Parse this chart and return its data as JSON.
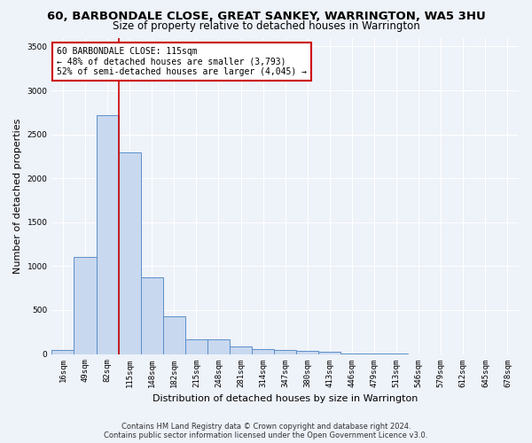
{
  "title": "60, BARBONDALE CLOSE, GREAT SANKEY, WARRINGTON, WA5 3HU",
  "subtitle": "Size of property relative to detached houses in Warrington",
  "xlabel": "Distribution of detached houses by size in Warrington",
  "ylabel": "Number of detached properties",
  "footer_line1": "Contains HM Land Registry data © Crown copyright and database right 2024.",
  "footer_line2": "Contains public sector information licensed under the Open Government Licence v3.0.",
  "categories": [
    "16sqm",
    "49sqm",
    "82sqm",
    "115sqm",
    "148sqm",
    "182sqm",
    "215sqm",
    "248sqm",
    "281sqm",
    "314sqm",
    "347sqm",
    "380sqm",
    "413sqm",
    "446sqm",
    "479sqm",
    "513sqm",
    "546sqm",
    "579sqm",
    "612sqm",
    "645sqm",
    "678sqm"
  ],
  "values": [
    50,
    1100,
    2720,
    2290,
    870,
    425,
    170,
    165,
    90,
    60,
    50,
    35,
    25,
    10,
    5,
    5,
    0,
    0,
    0,
    0,
    0
  ],
  "bar_color": "#c8d8ef",
  "bar_edge_color": "#5b8fc9",
  "vline_color": "#cc0000",
  "vline_index": 2.5,
  "annotation_text": "60 BARBONDALE CLOSE: 115sqm\n← 48% of detached houses are smaller (3,793)\n52% of semi-detached houses are larger (4,045) →",
  "annotation_box_color": "#ffffff",
  "annotation_box_edge_color": "#cc0000",
  "ylim": [
    0,
    3600
  ],
  "yticks": [
    0,
    500,
    1000,
    1500,
    2000,
    2500,
    3000,
    3500
  ],
  "background_color": "#eef2f9",
  "grid_color": "#ffffff",
  "title_fontsize": 9.5,
  "subtitle_fontsize": 8.5,
  "ylabel_fontsize": 8,
  "xlabel_fontsize": 8,
  "tick_fontsize": 6.5,
  "annotation_fontsize": 7,
  "footer_fontsize": 6
}
